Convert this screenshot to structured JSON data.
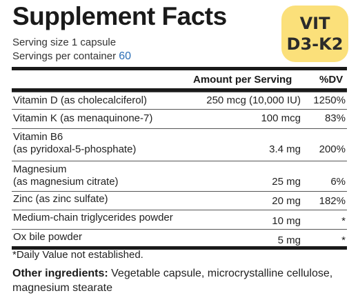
{
  "title": "Supplement Facts",
  "badge": {
    "line1": "VIT",
    "line2": "D3-K2"
  },
  "serving_size": "Serving size 1 capsule",
  "servings_per_container": {
    "label": "Servings per container",
    "value": "60"
  },
  "table": {
    "headers": {
      "amount": "Amount per Serving",
      "dv": "%DV"
    },
    "rows": [
      {
        "name": "Vitamin D (as cholecalciferol)",
        "amount": "250 mcg (10,000 IU)",
        "dv": "1250%"
      },
      {
        "name": "Vitamin K (as menaquinone-7)",
        "amount": "100 mcg",
        "dv": "83%"
      },
      {
        "name": "Vitamin B6",
        "name2": "(as pyridoxal-5-phosphate)",
        "amount": "3.4 mg",
        "dv": "200%"
      },
      {
        "name": "Magnesium",
        "name2": "(as magnesium citrate)",
        "amount": "25 mg",
        "dv": "6%"
      },
      {
        "name": "Zinc (as zinc sulfate)",
        "amount": "20 mg",
        "dv": "182%"
      },
      {
        "name": "Medium-chain triglycerides powder",
        "amount": "10 mg",
        "dv": "*"
      },
      {
        "name": "Ox bile powder",
        "amount": "5 mg",
        "dv": "*"
      }
    ]
  },
  "footnote": "*Daily Value not established.",
  "other_ingredients": {
    "label": "Other ingredients:",
    "text": "Vegetable capsule, microcrystalline cellulose, magnesium stearate"
  },
  "colors": {
    "badge": "#fbe07a",
    "servings_value": "#2a6db5",
    "text": "#222222"
  }
}
